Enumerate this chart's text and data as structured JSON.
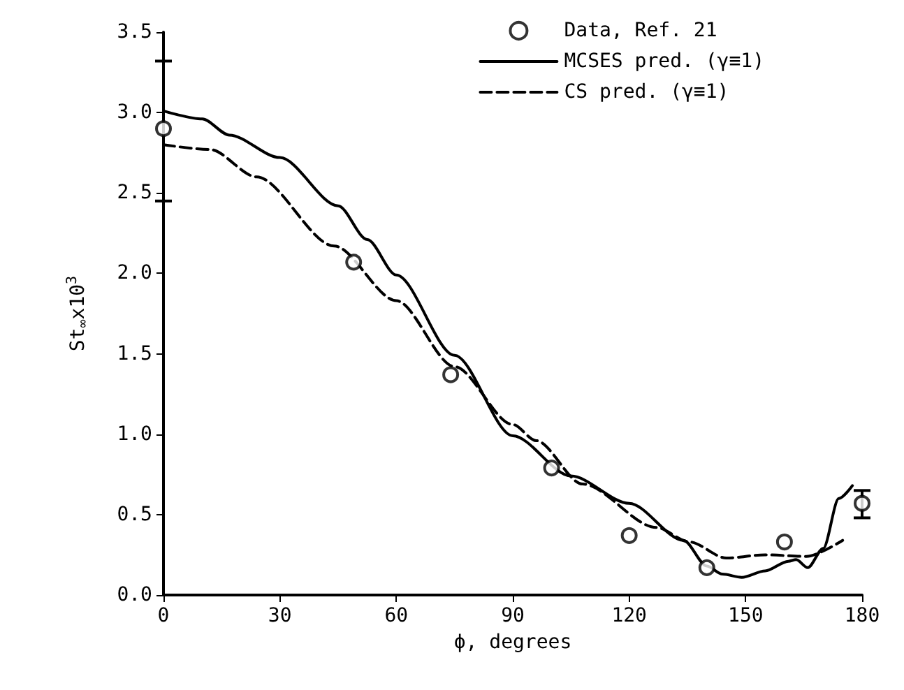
{
  "chart_data": {
    "type": "line",
    "xlabel": "ϕ, degrees",
    "ylabel": "St$_{∞}$x10$^{3}$",
    "xlim": [
      0,
      180
    ],
    "xticks": [
      0,
      30,
      60,
      90,
      120,
      150,
      180
    ],
    "ylim": [
      0,
      3.5
    ],
    "yticks": [
      {
        "value": 0,
        "label": "0.0"
      },
      {
        "value": 0.5,
        "label": "0.5"
      },
      {
        "value": 1,
        "label": "1.0"
      },
      {
        "value": 1.5,
        "label": "1.5"
      },
      {
        "value": 2,
        "label": "2.0"
      },
      {
        "value": 2.5,
        "label": "2.5"
      },
      {
        "value": 3,
        "label": "3.0"
      },
      {
        "value": 3.5,
        "label": "3.5"
      }
    ],
    "grid": false,
    "legend": "top right",
    "series": [
      {
        "name": "Data, Ref. 21",
        "type": "scatter",
        "marker": "circle",
        "color": "#000000",
        "x": [
          0,
          49,
          74,
          100,
          120,
          140,
          160,
          180
        ],
        "values": [
          2.9,
          2.07,
          1.37,
          0.79,
          0.37,
          0.17,
          0.33,
          0.57
        ],
        "errors": [
          [
            2.45,
            3.32
          ],
          null,
          null,
          null,
          null,
          null,
          null,
          [
            0.48,
            0.65
          ]
        ]
      },
      {
        "name": "MCSES pred. (γ≡1)",
        "marker": "none",
        "line_style": "solid",
        "color": "#000000",
        "x": [
          0,
          10,
          17,
          30,
          45,
          52.5,
          60,
          75,
          90,
          105,
          120,
          134,
          140,
          144,
          149,
          155,
          161,
          163,
          166,
          170,
          174,
          177.5
        ],
        "values": [
          3.01,
          2.96,
          2.86,
          2.72,
          2.42,
          2.21,
          1.99,
          1.49,
          0.99,
          0.74,
          0.57,
          0.34,
          0.18,
          0.13,
          0.11,
          0.15,
          0.21,
          0.22,
          0.17,
          0.29,
          0.6,
          0.68
        ]
      },
      {
        "name": "CS pred. (γ≡1)",
        "marker": "none",
        "line_style": "dashed",
        "color": "#000000",
        "x": [
          0,
          12,
          24,
          44,
          60,
          75,
          90,
          96,
          108,
          127,
          135.5,
          145,
          155,
          165.6,
          175
        ],
        "values": [
          2.8,
          2.77,
          2.6,
          2.17,
          1.83,
          1.42,
          1.06,
          0.96,
          0.69,
          0.42,
          0.33,
          0.23,
          0.25,
          0.24,
          0.34
        ]
      }
    ]
  }
}
